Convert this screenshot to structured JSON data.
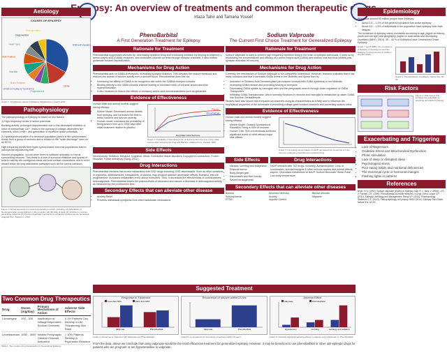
{
  "header": {
    "title": "Epilepsy: An overview of treatments and common therapeutic drugs",
    "authors": "Irtaza Tahir and Tamana Yousef"
  },
  "aetiology": {
    "heading": "Aetiology",
    "chart_title": "CAUSES OF EPILEPSY",
    "caption": "Graph 1: The Various causes of Epilepsy. Adapted from: Leach, 2011",
    "labels": [
      "Unknown Causes",
      "Stroke",
      "Drugs/Alcohol",
      "Childhood Epilepsy Syndromes",
      "Brain Tumours",
      "Vascular",
      "Congenital Malformations",
      "Head Injury",
      "Degenerative",
      "Post-operative"
    ]
  },
  "chart_data": [
    {
      "type": "pie",
      "title": "CAUSES OF EPILEPSY",
      "categories": [
        "Unknown Causes",
        "Stroke",
        "Drugs/Alcohol",
        "Childhood Epilepsy Syndromes",
        "Brain Tumours",
        "Vascular",
        "Congenital Malformations",
        "Head Injury",
        "Degenerative",
        "Post-operative"
      ],
      "values": [
        33,
        15,
        6,
        5,
        6,
        8,
        8,
        6,
        7,
        6
      ]
    },
    {
      "type": "line",
      "title": "",
      "xlabel": "Days after Initial Seizures",
      "ylabel": "Percentage Probability of Seizure Recurrence",
      "series": [
        {
          "name": "Phenobarbital",
          "values": [
            0,
            30,
            44,
            50,
            54,
            56
          ]
        },
        {
          "name": "Placebo",
          "values": [
            0,
            48,
            58,
            64,
            68,
            70
          ]
        }
      ],
      "x": [
        0,
        100,
        200,
        300,
        400,
        500
      ]
    },
    {
      "type": "bar",
      "title": "Response to Treatment",
      "categories": [
        "Valproate",
        "Phenobarbital"
      ],
      "series": [
        {
          "name": "Less than 50%",
          "values": [
            30,
            45
          ]
        },
        {
          "name": "More than 50%",
          "values": [
            65,
            50
          ]
        }
      ]
    },
    {
      "type": "bar",
      "title": "Recurrence of seizure within 24 hrs",
      "categories": [
        "Valproate",
        "Phenobarbital"
      ],
      "values": [
        8,
        22
      ]
    },
    {
      "type": "bar",
      "title": "Adverse Effect",
      "categories": [
        "Hypotension",
        "Vomiting",
        "Lethargy and sedation"
      ],
      "series": [
        {
          "name": "Valproate",
          "values": [
            1,
            2,
            3
          ]
        },
        {
          "name": "Phenobarbital",
          "values": [
            4,
            3,
            9
          ]
        }
      ]
    }
  ],
  "patho": {
    "heading": "Pathophysiology",
    "p1": "The pathophysiology of Epilepsy is based on two factors:",
    "p2": "1) High-frequency bursts of action potentials",
    "p3": "Bursting activity: prolonged depolarization due to the decreased inhibition or influx of extracellular Ca²⁺, leads to the opening of voltage-dependent Na⁺ channels, influx of Na⁺, and generation of repetitive action potentials.",
    "p4": "2) Hypersynchronization of a neuronal population (which is the synchronized bursts from a group of neurons and is related to the \"spike discharge\" seen on an EEG)",
    "p5": "High frequency bursts from hyper synchronized neuronal populations lead to paroxysmal depolarizing shift.",
    "p6": "Seizure propagation, occurs when there is sufficient activation to recruit surrounding neurons. This leads to a loss of surround inhibition and spread of seizure activity into contiguous areas via local cortical connections, and to more distant areas via long association pathways such as the corpus callosum.",
    "caption": "Figure 1: Series elements of a seizure-generating network, including: (A) Modulation of Neurotransmitter concentrations in the synaptic cleft (B) Role of static (K) inhibition in seizure generating networks (C) Proximal feedback mechanisms of thalamo-cortical seizure generation. Adapted from: Stafstrom, 2013."
  },
  "pheno": {
    "title": "PhenoBarbital",
    "subtitle": "A First Generation Treatment for Epilepsy",
    "h_rationale": "Rationale for Treatment",
    "rationale": "Phenobarbital suppresses seizures by: decreasing repetitive firing and enhancing inhibition by binding to inhibitory γ-amino butyric acid (GABA) receptors, and modulates chloride currents through receptor channels. It also inhibits glutamate induced depolarization.",
    "h_mech": "Mechanisms for Drug Action",
    "mech": "Phenobarbital acts on GABA-A receptors, increasing synaptic inhibition. This elevates the seizure threshold and reduces the spread of seizure activity from a seizure focus. Phenobarbital does this via:",
    "mech_items": [
      "Increasing the affinity of GABA to its recognition site within the GABAA receptor complex",
      "Binding directly to the GABA chloride channel leading to increased influx of chloride anions and thus hyperpolarization",
      "It also functions to reduce the effects of excitatory amino acid neurotransmitters such as glutamate."
    ],
    "h_eff": "Evidence of Effectiveness",
    "eff": "Human trials and animal models suggest strong efficacy:",
    "eff_items": [
      "Murine Model: Decreased animal deaths from epilepsy, and increased the time to lethal outcome and seizure severity.",
      "Human model: Increased the probability of being seizure free up to 1000 days after initial treatment relative to placebo."
    ],
    "graph_cap": "Graph 2: Probability of Remaining Free of Seizures from the time of the initial seizure after receiving the drug and Placebo. Adapted from: Farwell, 1990.",
    "h_side": "Side Effects",
    "side": "Neurotoxicity: Sedation, Behavior, Cognition, Mood. Connective tissue disorders: Dupuytren's contracture, Frozen Shoulder. Folate deficiency (Rang, 2011)",
    "h_inter": "Drug Interactions",
    "inter": "Phenobarbital interacts has known interactions with 1032 drugs including: CNS depressants: Such as other sedatives or hypnotics, antihistamines, tranquilizers, or alcohol, may produce additive depressant effects. Estradiol, estrone, progesterone: Increased metabolism of the above hormones. Thus, it decreases the effectiveness of contraceptives. Anticoagulants: Phenobarbital lowers the plasma levels of dicumarol and causes a decrease in anticoagulant activity as measured by the prothrombin time."
  },
  "valp": {
    "title": "Sodium Valproate",
    "subtitle": "The Current First Choice Treatment for Generalized Epilepsy",
    "h_rationale": "Rationale for Treatment",
    "rationale": "Sodium Valproate is used to prevent high frequency repetitive firing in the brain of epileptic individuals. It does so by modulating the concentrations and efficacy of γ-amino butyric acid (GABA) and sodium ions and thus inhibits post-synaptic activation of neurons.",
    "h_mech": "Mechanisms for Drug Action",
    "mech": "Currently, the mechanism of Sodium Valproate is not completely understood. However, research indicates that it has many functions and that it increases GABA levels in the Midbrain and Spinal fluid by:",
    "mech_items": [
      "Activation of Glutamic Acid Decarboxylase (an enzyme involved with GABA synthesis) in the Midbrain",
      "Increasing GABA release and promoting binding to receptors",
      "Decreasing GABA uptake by microglial cells and the presynaptic neuron through down-regulation of GABA Transporters",
      "Inhibiting GABA Transaminase, which normally functions in neurons and microglia to metabolize up-taken GABA into Succinic Semialdehyde"
    ],
    "mech2": "Studies have also shown that it impacts ion channels using its characteristics as a fatty acid to influence the biophysical properties of the membrane surrounding voltage-gated sodium channels and preventing sodium influx.",
    "h_eff": "Evidence of Effectiveness",
    "eff": "Human trials and animal models suggest strong efficacy:",
    "eff_items": [
      "Murine Model: Ceased Spontaneous Repetitive Firing in 90% of neurons",
      "Human Trial: 75% of individuals achieved significant levels of relief without major side effects"
    ],
    "graph_cap": "Graph 3: Increasing concentration of NaVP decreases the proportion of mice neurons undergoing spontaneous repetitive firing.",
    "h_side": "Side Effects",
    "side_items": [
      "Nausea, vomiting and indigestion",
      "Postural tremor",
      "Body weight gain",
      "Pancreatitis and liver toxicity",
      "Severe teratogenesis"
    ],
    "h_inter": "Drug Interactions",
    "inter": "NaVP interacts with 702 drugs, including: Acetaminophen: Loss of coordination, suicidal thoughts & other nervous system and mental effects. Aspirin: Decreased metabolism of NaVP. Sodium Benzoate: Weak Pulse, Low body temperature"
  },
  "secondary": {
    "h_pheno": "Secondary Effects that can alleviate other disease",
    "pheno_items": [
      "Anxiety Relief",
      "Prevents withdrawal symptoms from other barbiturate medications"
    ],
    "h_valp": "Secondary Effects that can alleviate other diseases",
    "valp_items": [
      "Bulimia",
      "Anorexia Nervosa",
      "Bipolar disorder",
      "Schizophrenia",
      "Anxiety",
      "Migraine",
      "PTSD",
      "Impulse Control"
    ]
  },
  "suggested": {
    "heading": "Suggested Treatment",
    "g4": "Graph 4: Response to treatment with Valproate and Phenobarbital",
    "g5": "Graph 5: A comparison of recurrence of seizures within 24 hours",
    "g6": "Graph 6: Clinically significant adverse effects in patients using Valproate vs. Phenobarbital",
    "text": "From the data, above we conclude that using valproate would be the most efficacious treatment for generalized epilepsy. However, it may be beneficial to use phenobarbital or other anti-epileptic drugs for patients who are pregnant or are hypersensitive to valproate."
  },
  "epidemiology": {
    "heading": "Epidemiology",
    "p1": "Worldwide around 50 million people have Epilepsy:",
    "items": [
      "About 0.4 – 1.3% of the general population has active epilepsy",
      "About 0.6 – 1.5% of individuals in the population have epilepsy over their lifespan"
    ],
    "p2": "The incidence of epilepsy varies worldwide according to age (higher at infancy, youth and old age) and geography (higher in rural areas and developing countries) (WHO, 2014). 30 – 40 % of Epileptics have Generalized Onset Epilepsy.",
    "graph_cap": "Graph 7 and 8 (RBF): the prevalence of Epilepsy in developed countries. Epilepsy is most common in children and the elderly.",
    "graph_cap2": "Graph 9: The distribution of epilepsy. Nature 511: 62-63"
  },
  "risk": {
    "heading": "Risk Factors",
    "caption": "Figure 2: Risk factors that increase the probability of acquiring generalized epilepsy."
  },
  "exac": {
    "heading": "Exacerbating and Triggering Factors",
    "items": [
      "Lack of Magnesium",
      "Oxidative Stress and Mitochondrial Dysfunction",
      "Photic stimulation",
      "Lack of sleep or disrupted sleep",
      "Psychological stress",
      "Poor eating habits and nutritional deficiencies",
      "The menstrual cycle or hormonal changes",
      "Flashing lights or patterns"
    ]
  },
  "references": {
    "heading": "References",
    "text": "Brain, K.H. (1990). Sodium valproate (Epilim) in epilepsy. Mat. R. J. Med. J. 300(6), 170-2. Farwell, J.R. (1990). Phenobarbital for febrile seizures. N Engl J Med. Leach J.P. (2011). Epilepsy: Aetiology and Management. Rang H.P. (2011). Pharmacology. Stafstrom C.E. (2013). Pathophysiology of Epilepsy. WHO (2014). Epilepsy Fact Sheet. Nature 511: 62-63."
  },
  "drugs": {
    "heading": "Two Common Drug Therapeutics",
    "cols": [
      "Drug",
      "Doses (mg/day)",
      "Primary Mechanism of Action",
      "Adverse Side Effects"
    ],
    "rows": [
      [
        "Lamotrigine",
        "100 - 300",
        "Inactivation of Voltage Dependent Sodium Channels",
        "0.1% Patients Can Develop a Life Threatening Skin Rash"
      ],
      [
        "Levetiracetam",
        "1000 - 3000",
        "Inhibits Presynaptic Calcium Channel Activation",
        "> 10% Patients Develop a Psychiatric Reaction"
      ]
    ],
    "caption": "Table 1: Two modern drug therapeutics for Generalized Epilepsy."
  }
}
